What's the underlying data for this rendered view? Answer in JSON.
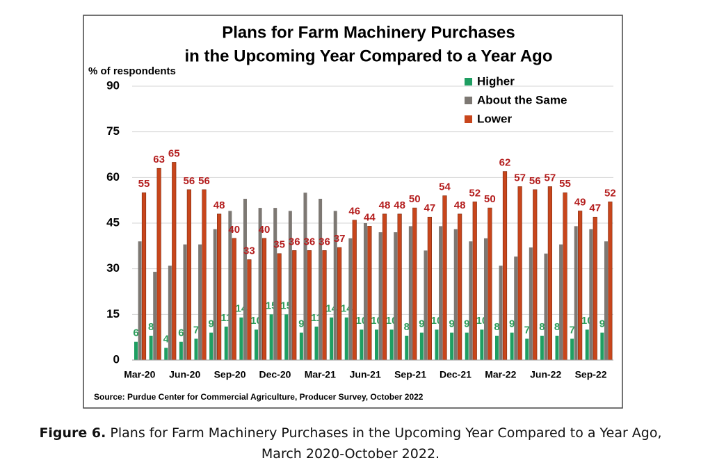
{
  "chart_data": {
    "type": "bar",
    "title": [
      "Plans for Farm Machinery Purchases",
      "in the Upcoming Year Compared to a Year Ago"
    ],
    "y_label": "% of respondents",
    "source": "Source: Purdue Center for Commercial Agriculture, Producer Survey, October 2022",
    "categories": [
      "Mar-20",
      null,
      null,
      "Jun-20",
      null,
      null,
      "Sep-20",
      null,
      null,
      "Dec-20",
      null,
      null,
      "Mar-21",
      null,
      null,
      "Jun-21",
      null,
      null,
      "Sep-21",
      null,
      null,
      "Dec-21",
      null,
      null,
      "Mar-22",
      null,
      null,
      "Jun-22",
      null,
      null,
      "Sep-22",
      null
    ],
    "series": [
      {
        "name": "Higher",
        "color": "#1f9e62",
        "label_color": "#2e9e5c",
        "values": [
          6,
          8,
          4,
          6,
          7,
          9,
          11,
          14,
          10,
          15,
          15,
          9,
          11,
          14,
          14,
          10,
          10,
          10,
          8,
          9,
          10,
          9,
          9,
          10,
          8,
          9,
          7,
          8,
          8,
          7,
          10,
          9
        ]
      },
      {
        "name": "About the Same",
        "color": "#7d7873",
        "values": [
          39,
          29,
          31,
          38,
          38,
          43,
          49,
          53,
          50,
          50,
          49,
          55,
          53,
          49,
          40,
          45,
          42,
          42,
          44,
          36,
          44,
          43,
          39,
          40,
          31,
          34,
          37,
          35,
          38,
          44,
          43,
          39
        ]
      },
      {
        "name": "Lower",
        "color": "#c8461c",
        "label_color": "#b41e1e",
        "values": [
          55,
          63,
          65,
          56,
          56,
          48,
          40,
          33,
          40,
          35,
          36,
          36,
          36,
          37,
          46,
          44,
          48,
          48,
          50,
          47,
          54,
          48,
          52,
          50,
          62,
          57,
          56,
          57,
          55,
          49,
          47,
          52
        ]
      }
    ],
    "ylim": [
      0,
      90
    ],
    "yticks": [
      0,
      15,
      30,
      45,
      60,
      75,
      90
    ],
    "grid": true,
    "legend": "top-right"
  },
  "caption": {
    "label": "Figure 6.",
    "text": "Plans for Farm Machinery Purchases in the Upcoming Year Compared to a Year Ago, March 2020-October 2022."
  }
}
